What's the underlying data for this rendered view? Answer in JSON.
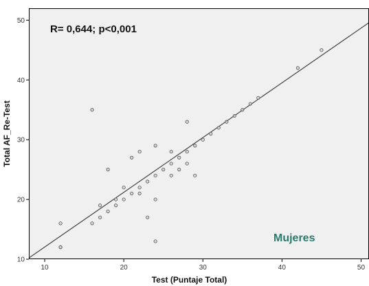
{
  "chart_data": {
    "type": "scatter",
    "title": "",
    "xlabel": "Test (Puntaje Total)",
    "ylabel": "Total AF_Re-Test",
    "xlim": [
      8,
      51
    ],
    "ylim": [
      10,
      52
    ],
    "xticks": [
      10,
      20,
      30,
      40,
      50
    ],
    "yticks": [
      10,
      20,
      30,
      40,
      50
    ],
    "x_tick_labels": [
      "10",
      "20",
      "30",
      "40",
      "50"
    ],
    "y_tick_labels": [
      "10",
      "20",
      "30",
      "40",
      "50"
    ],
    "grid": false,
    "legend": "none",
    "annotation": "R= 0,644; p<0,001",
    "group_label": "Mujeres",
    "colors": {
      "plot_background": "#f0f0f0",
      "frame": "#000000",
      "marker_fill": "#cccccc",
      "marker_stroke": "#555555",
      "fit_line": "#444444",
      "group_label": "#2a7a6f"
    },
    "fit_line": {
      "x": [
        8,
        51
      ],
      "y": [
        10.2,
        49.6
      ]
    },
    "points": [
      {
        "x": 12,
        "y": 16
      },
      {
        "x": 12,
        "y": 12
      },
      {
        "x": 12,
        "y": 12
      },
      {
        "x": 16,
        "y": 16
      },
      {
        "x": 17,
        "y": 17
      },
      {
        "x": 17,
        "y": 19
      },
      {
        "x": 16,
        "y": 35
      },
      {
        "x": 18,
        "y": 25
      },
      {
        "x": 18,
        "y": 18
      },
      {
        "x": 19,
        "y": 19
      },
      {
        "x": 19,
        "y": 20
      },
      {
        "x": 20,
        "y": 20
      },
      {
        "x": 20,
        "y": 22
      },
      {
        "x": 21,
        "y": 21
      },
      {
        "x": 21,
        "y": 27
      },
      {
        "x": 22,
        "y": 21
      },
      {
        "x": 22,
        "y": 22
      },
      {
        "x": 22,
        "y": 28
      },
      {
        "x": 23,
        "y": 23
      },
      {
        "x": 23,
        "y": 17
      },
      {
        "x": 24,
        "y": 24
      },
      {
        "x": 24,
        "y": 20
      },
      {
        "x": 24,
        "y": 13
      },
      {
        "x": 24,
        "y": 29
      },
      {
        "x": 25,
        "y": 25
      },
      {
        "x": 26,
        "y": 24
      },
      {
        "x": 26,
        "y": 26
      },
      {
        "x": 26,
        "y": 28
      },
      {
        "x": 27,
        "y": 25
      },
      {
        "x": 27,
        "y": 27
      },
      {
        "x": 28,
        "y": 26
      },
      {
        "x": 28,
        "y": 28
      },
      {
        "x": 28,
        "y": 33
      },
      {
        "x": 29,
        "y": 29
      },
      {
        "x": 29,
        "y": 24
      },
      {
        "x": 30,
        "y": 30
      },
      {
        "x": 31,
        "y": 31
      },
      {
        "x": 32,
        "y": 32
      },
      {
        "x": 33,
        "y": 33
      },
      {
        "x": 34,
        "y": 34
      },
      {
        "x": 35,
        "y": 35
      },
      {
        "x": 36,
        "y": 36
      },
      {
        "x": 37,
        "y": 37
      },
      {
        "x": 42,
        "y": 42
      },
      {
        "x": 45,
        "y": 45
      }
    ]
  }
}
